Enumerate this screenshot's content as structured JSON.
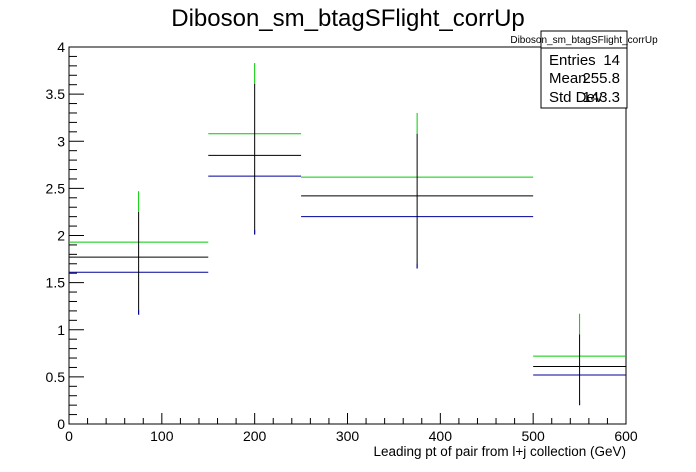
{
  "chart_data": {
    "type": "histogram",
    "title": "Diboson_sm_btagSFlight_corrUp",
    "xlabel": "Leading pt of pair from l+j collection (GeV)",
    "ylabel": "",
    "xlim": [
      0,
      600
    ],
    "ylim": [
      0,
      4
    ],
    "x_ticks": [
      0,
      100,
      200,
      300,
      400,
      500,
      600
    ],
    "y_ticks": [
      0,
      0.5,
      1,
      1.5,
      2,
      2.5,
      3,
      3.5,
      4
    ],
    "y_tick_labels": [
      "0",
      "0.5",
      "1",
      "1.5",
      "2",
      "2.5",
      "3",
      "3.5",
      "4"
    ],
    "bins": [
      {
        "low": 0,
        "high": 150,
        "center": 75,
        "nominal": 1.77,
        "up": 1.93,
        "down": 1.61,
        "err_low": 1.16,
        "err_high": 2.47
      },
      {
        "low": 150,
        "high": 250,
        "center": 200,
        "nominal": 2.85,
        "up": 3.08,
        "down": 2.63,
        "err_low": 2.01,
        "err_high": 3.83
      },
      {
        "low": 250,
        "high": 500,
        "center": 375,
        "nominal": 2.42,
        "up": 2.62,
        "down": 2.2,
        "err_low": 1.65,
        "err_high": 3.3
      },
      {
        "low": 500,
        "high": 600,
        "center": 550,
        "nominal": 0.61,
        "up": 0.72,
        "down": 0.52,
        "err_low": 0.2,
        "err_high": 1.17
      }
    ],
    "series": [
      {
        "key": "nominal",
        "color": "#000000"
      },
      {
        "key": "up",
        "color": "#00cc00"
      },
      {
        "key": "down",
        "color": "#000099"
      }
    ],
    "stats": {
      "name": "Diboson_sm_btagSFlight_corrUp",
      "rows": [
        {
          "label": "Entries",
          "value": "14"
        },
        {
          "label": "Mean",
          "value": "255.8"
        },
        {
          "label": "Std Dev",
          "value": "143.3"
        }
      ]
    },
    "grid": false
  }
}
